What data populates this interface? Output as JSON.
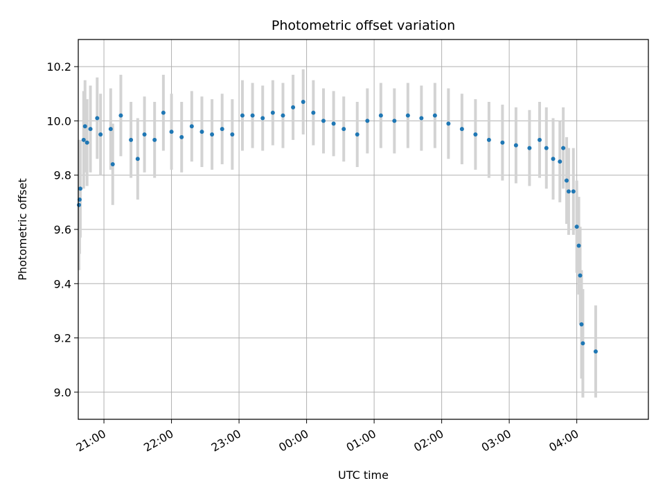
{
  "chart_data": {
    "type": "scatter",
    "title": "Photometric offset variation",
    "xlabel": "UTC time",
    "ylabel": "Photometric offset",
    "ylim": [
      8.9,
      10.3
    ],
    "xlim": [
      -3.38,
      5.06
    ],
    "x_unit": "hours",
    "grid": true,
    "colors": {
      "points": "#1f77b4",
      "errorbars": "#d3d3d3"
    },
    "xticks": [
      {
        "value": -3,
        "label": "21:00"
      },
      {
        "value": -2,
        "label": "22:00"
      },
      {
        "value": -1,
        "label": "23:00"
      },
      {
        "value": 0,
        "label": "00:00"
      },
      {
        "value": 1,
        "label": "01:00"
      },
      {
        "value": 2,
        "label": "02:00"
      },
      {
        "value": 3,
        "label": "03:00"
      },
      {
        "value": 4,
        "label": "04:00"
      }
    ],
    "yticks": [
      9.0,
      9.2,
      9.4,
      9.6,
      9.8,
      10.0,
      10.2
    ],
    "series": [
      {
        "points": [
          {
            "x": -3.37,
            "y": 9.69,
            "err": 0.24
          },
          {
            "x": -3.36,
            "y": 9.71,
            "err": 0.2
          },
          {
            "x": -3.35,
            "y": 9.75,
            "err": 0.18
          },
          {
            "x": -3.3,
            "y": 9.93,
            "err": 0.18
          },
          {
            "x": -3.28,
            "y": 9.98,
            "err": 0.17
          },
          {
            "x": -3.25,
            "y": 9.92,
            "err": 0.16
          },
          {
            "x": -3.2,
            "y": 9.97,
            "err": 0.16
          },
          {
            "x": -3.1,
            "y": 10.01,
            "err": 0.15
          },
          {
            "x": -3.05,
            "y": 9.95,
            "err": 0.15
          },
          {
            "x": -2.9,
            "y": 9.97,
            "err": 0.15
          },
          {
            "x": -2.87,
            "y": 9.84,
            "err": 0.15
          },
          {
            "x": -2.75,
            "y": 10.02,
            "err": 0.15
          },
          {
            "x": -2.6,
            "y": 9.93,
            "err": 0.14
          },
          {
            "x": -2.5,
            "y": 9.86,
            "err": 0.15
          },
          {
            "x": -2.4,
            "y": 9.95,
            "err": 0.14
          },
          {
            "x": -2.25,
            "y": 9.93,
            "err": 0.14
          },
          {
            "x": -2.12,
            "y": 10.03,
            "err": 0.14
          },
          {
            "x": -2.0,
            "y": 9.96,
            "err": 0.14
          },
          {
            "x": -1.85,
            "y": 9.94,
            "err": 0.13
          },
          {
            "x": -1.7,
            "y": 9.98,
            "err": 0.13
          },
          {
            "x": -1.55,
            "y": 9.96,
            "err": 0.13
          },
          {
            "x": -1.4,
            "y": 9.95,
            "err": 0.13
          },
          {
            "x": -1.25,
            "y": 9.97,
            "err": 0.13
          },
          {
            "x": -1.1,
            "y": 9.95,
            "err": 0.13
          },
          {
            "x": -0.95,
            "y": 10.02,
            "err": 0.13
          },
          {
            "x": -0.8,
            "y": 10.02,
            "err": 0.12
          },
          {
            "x": -0.65,
            "y": 10.01,
            "err": 0.12
          },
          {
            "x": -0.5,
            "y": 10.03,
            "err": 0.12
          },
          {
            "x": -0.35,
            "y": 10.02,
            "err": 0.12
          },
          {
            "x": -0.2,
            "y": 10.05,
            "err": 0.12
          },
          {
            "x": -0.05,
            "y": 10.07,
            "err": 0.12
          },
          {
            "x": 0.1,
            "y": 10.03,
            "err": 0.12
          },
          {
            "x": 0.25,
            "y": 10.0,
            "err": 0.12
          },
          {
            "x": 0.4,
            "y": 9.99,
            "err": 0.12
          },
          {
            "x": 0.55,
            "y": 9.97,
            "err": 0.12
          },
          {
            "x": 0.75,
            "y": 9.95,
            "err": 0.12
          },
          {
            "x": 0.9,
            "y": 10.0,
            "err": 0.12
          },
          {
            "x": 1.1,
            "y": 10.02,
            "err": 0.12
          },
          {
            "x": 1.3,
            "y": 10.0,
            "err": 0.12
          },
          {
            "x": 1.5,
            "y": 10.02,
            "err": 0.12
          },
          {
            "x": 1.7,
            "y": 10.01,
            "err": 0.12
          },
          {
            "x": 1.9,
            "y": 10.02,
            "err": 0.12
          },
          {
            "x": 2.1,
            "y": 9.99,
            "err": 0.13
          },
          {
            "x": 2.3,
            "y": 9.97,
            "err": 0.13
          },
          {
            "x": 2.5,
            "y": 9.95,
            "err": 0.13
          },
          {
            "x": 2.7,
            "y": 9.93,
            "err": 0.14
          },
          {
            "x": 2.9,
            "y": 9.92,
            "err": 0.14
          },
          {
            "x": 3.1,
            "y": 9.91,
            "err": 0.14
          },
          {
            "x": 3.3,
            "y": 9.9,
            "err": 0.14
          },
          {
            "x": 3.45,
            "y": 9.93,
            "err": 0.14
          },
          {
            "x": 3.55,
            "y": 9.9,
            "err": 0.15
          },
          {
            "x": 3.65,
            "y": 9.86,
            "err": 0.15
          },
          {
            "x": 3.75,
            "y": 9.85,
            "err": 0.15
          },
          {
            "x": 3.8,
            "y": 9.9,
            "err": 0.15
          },
          {
            "x": 3.85,
            "y": 9.78,
            "err": 0.16
          },
          {
            "x": 3.88,
            "y": 9.74,
            "err": 0.16
          },
          {
            "x": 3.95,
            "y": 9.74,
            "err": 0.16
          },
          {
            "x": 4.0,
            "y": 9.61,
            "err": 0.17
          },
          {
            "x": 4.03,
            "y": 9.54,
            "err": 0.18
          },
          {
            "x": 4.05,
            "y": 9.43,
            "err": 0.18
          },
          {
            "x": 4.07,
            "y": 9.25,
            "err": 0.2
          },
          {
            "x": 4.09,
            "y": 9.18,
            "err": 0.2
          },
          {
            "x": 4.28,
            "y": 9.15,
            "err": 0.17
          }
        ]
      }
    ]
  }
}
